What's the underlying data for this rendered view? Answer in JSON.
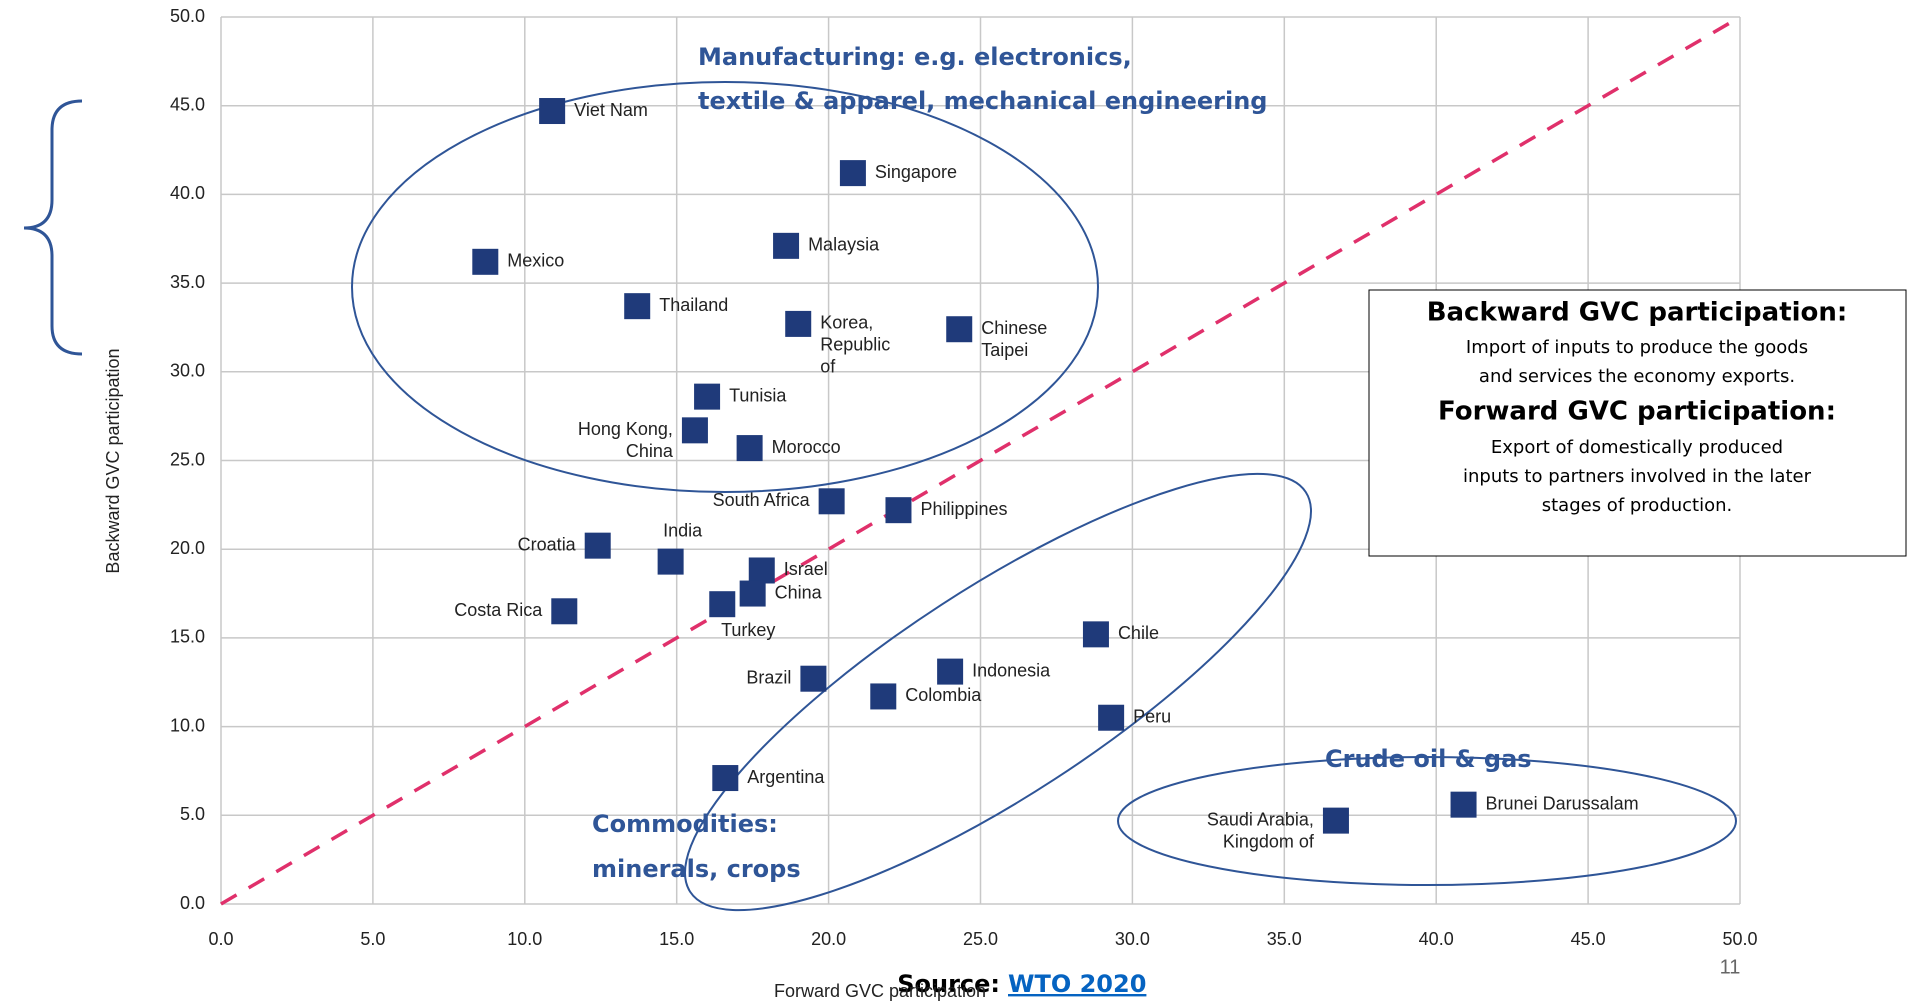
{
  "chart_data": {
    "type": "scatter",
    "xlabel": "Forward GVC participation",
    "ylabel": "Backward GVC participation",
    "labels": [
      [
        "Viet Nam"
      ],
      [
        "Singapore"
      ],
      [
        "Mexico"
      ],
      [
        "Malaysia"
      ],
      [
        "Thailand"
      ],
      [
        "Korea,",
        "Republic",
        "of"
      ],
      [
        "Chinese",
        "Taipei"
      ],
      [
        "Tunisia"
      ],
      [
        "Hong Kong,",
        "China"
      ],
      [
        "Morocco"
      ],
      [
        "South Africa"
      ],
      [
        "Philippines"
      ],
      [
        "Croatia"
      ],
      [
        "India"
      ],
      [
        "Israel"
      ],
      [
        "China"
      ],
      [
        "Turkey"
      ],
      [
        "Costa Rica"
      ],
      [
        "Chile"
      ],
      [
        "Indonesia"
      ],
      [
        "Brazil"
      ],
      [
        "Colombia"
      ],
      [
        "Peru"
      ],
      [
        "Argentina"
      ],
      [
        "Saudi Arabia,",
        "Kingdom of"
      ],
      [
        "Brunei Darussalam"
      ]
    ],
    "x": [
      10.9,
      20.8,
      8.7,
      18.6,
      13.7,
      19.0,
      24.3,
      16.0,
      15.6,
      17.4,
      20.1,
      22.3,
      12.4,
      14.8,
      17.8,
      17.5,
      16.5,
      11.3,
      28.8,
      24.0,
      19.5,
      21.8,
      29.3,
      16.6,
      36.7,
      40.9
    ],
    "y": [
      44.7,
      41.2,
      36.2,
      37.1,
      33.7,
      32.7,
      32.4,
      28.6,
      26.7,
      25.7,
      22.7,
      22.2,
      20.2,
      19.3,
      18.8,
      17.5,
      16.9,
      16.5,
      15.2,
      13.1,
      12.7,
      11.7,
      10.5,
      7.1,
      4.7,
      5.6
    ],
    "color": "#1f3a7a",
    "reference_line_color": "#e0306b",
    "xlim": [
      0,
      50
    ],
    "ylim": [
      0,
      50
    ],
    "xticks": [
      {
        "value": 0,
        "label": "0.0"
      },
      {
        "value": 5,
        "label": "5.0"
      },
      {
        "value": 10,
        "label": "10.0"
      },
      {
        "value": 15,
        "label": "15.0"
      },
      {
        "value": 20,
        "label": "20.0"
      },
      {
        "value": 25,
        "label": "25.0"
      },
      {
        "value": 30,
        "label": "30.0"
      },
      {
        "value": 35,
        "label": "35.0"
      },
      {
        "value": 40,
        "label": "40.0"
      },
      {
        "value": 45,
        "label": "45.0"
      },
      {
        "value": 50,
        "label": "50.0"
      }
    ],
    "yticks": [
      {
        "value": 0,
        "label": "0.0"
      },
      {
        "value": 5,
        "label": "5.0"
      },
      {
        "value": 10,
        "label": "10.0"
      },
      {
        "value": 15,
        "label": "15.0"
      },
      {
        "value": 20,
        "label": "20.0"
      },
      {
        "value": 25,
        "label": "25.0"
      },
      {
        "value": 30,
        "label": "30.0"
      },
      {
        "value": 35,
        "label": "35.0"
      },
      {
        "value": 40,
        "label": "40.0"
      },
      {
        "value": 45,
        "label": "45.0"
      },
      {
        "value": 50,
        "label": "50.0"
      }
    ],
    "grid": true
  },
  "annotations": {
    "manufacturing": [
      "Manufacturing: e.g. electronics,",
      "textile & apparel, mechanical engineering"
    ],
    "commodities": [
      "Commodities:",
      "minerals, crops"
    ],
    "crude": "Crude oil & gas",
    "box": {
      "backward_title": "Backward GVC participation:",
      "backward_text": [
        "Import of inputs to produce the goods",
        "and services the economy exports."
      ],
      "forward_title": "Forward GVC participation:",
      "forward_text": [
        "Export of domestically produced",
        "inputs to partners involved in the later",
        "stages of production."
      ]
    },
    "source_label": "Source:",
    "source_link": "WTO 2020",
    "page_number": "11"
  }
}
